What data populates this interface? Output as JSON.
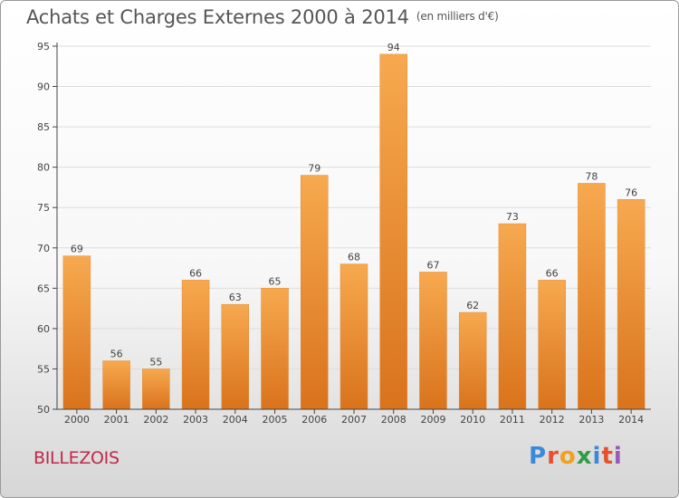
{
  "title": "Achats et Charges Externes 2000 à 2014",
  "unit": "(en milliers d'€)",
  "commune": "BILLEZOIS",
  "logo": {
    "text": "Proxiti",
    "colors": [
      "#3b8ad9",
      "#e8502c",
      "#f2a11a",
      "#2f9e44",
      "#3b8ad9",
      "#e8502c",
      "#9b59b6"
    ]
  },
  "colors": {
    "bar_top": "#f7a94f",
    "bar_bottom": "#d9731c",
    "axis": "#444444",
    "grid": "#dddddd",
    "title": "#555555",
    "commune": "#c0284a"
  },
  "chart_data": {
    "type": "bar",
    "categories": [
      "2000",
      "2001",
      "2002",
      "2003",
      "2004",
      "2005",
      "2006",
      "2007",
      "2008",
      "2009",
      "2010",
      "2011",
      "2012",
      "2013",
      "2014"
    ],
    "values": [
      69,
      56,
      55,
      66,
      63,
      65,
      79,
      68,
      94,
      67,
      62,
      73,
      66,
      78,
      76
    ],
    "ylim": [
      50,
      95
    ],
    "yticks": [
      50,
      55,
      60,
      65,
      70,
      75,
      80,
      85,
      90,
      95
    ],
    "grid": true,
    "data_labels": true
  }
}
